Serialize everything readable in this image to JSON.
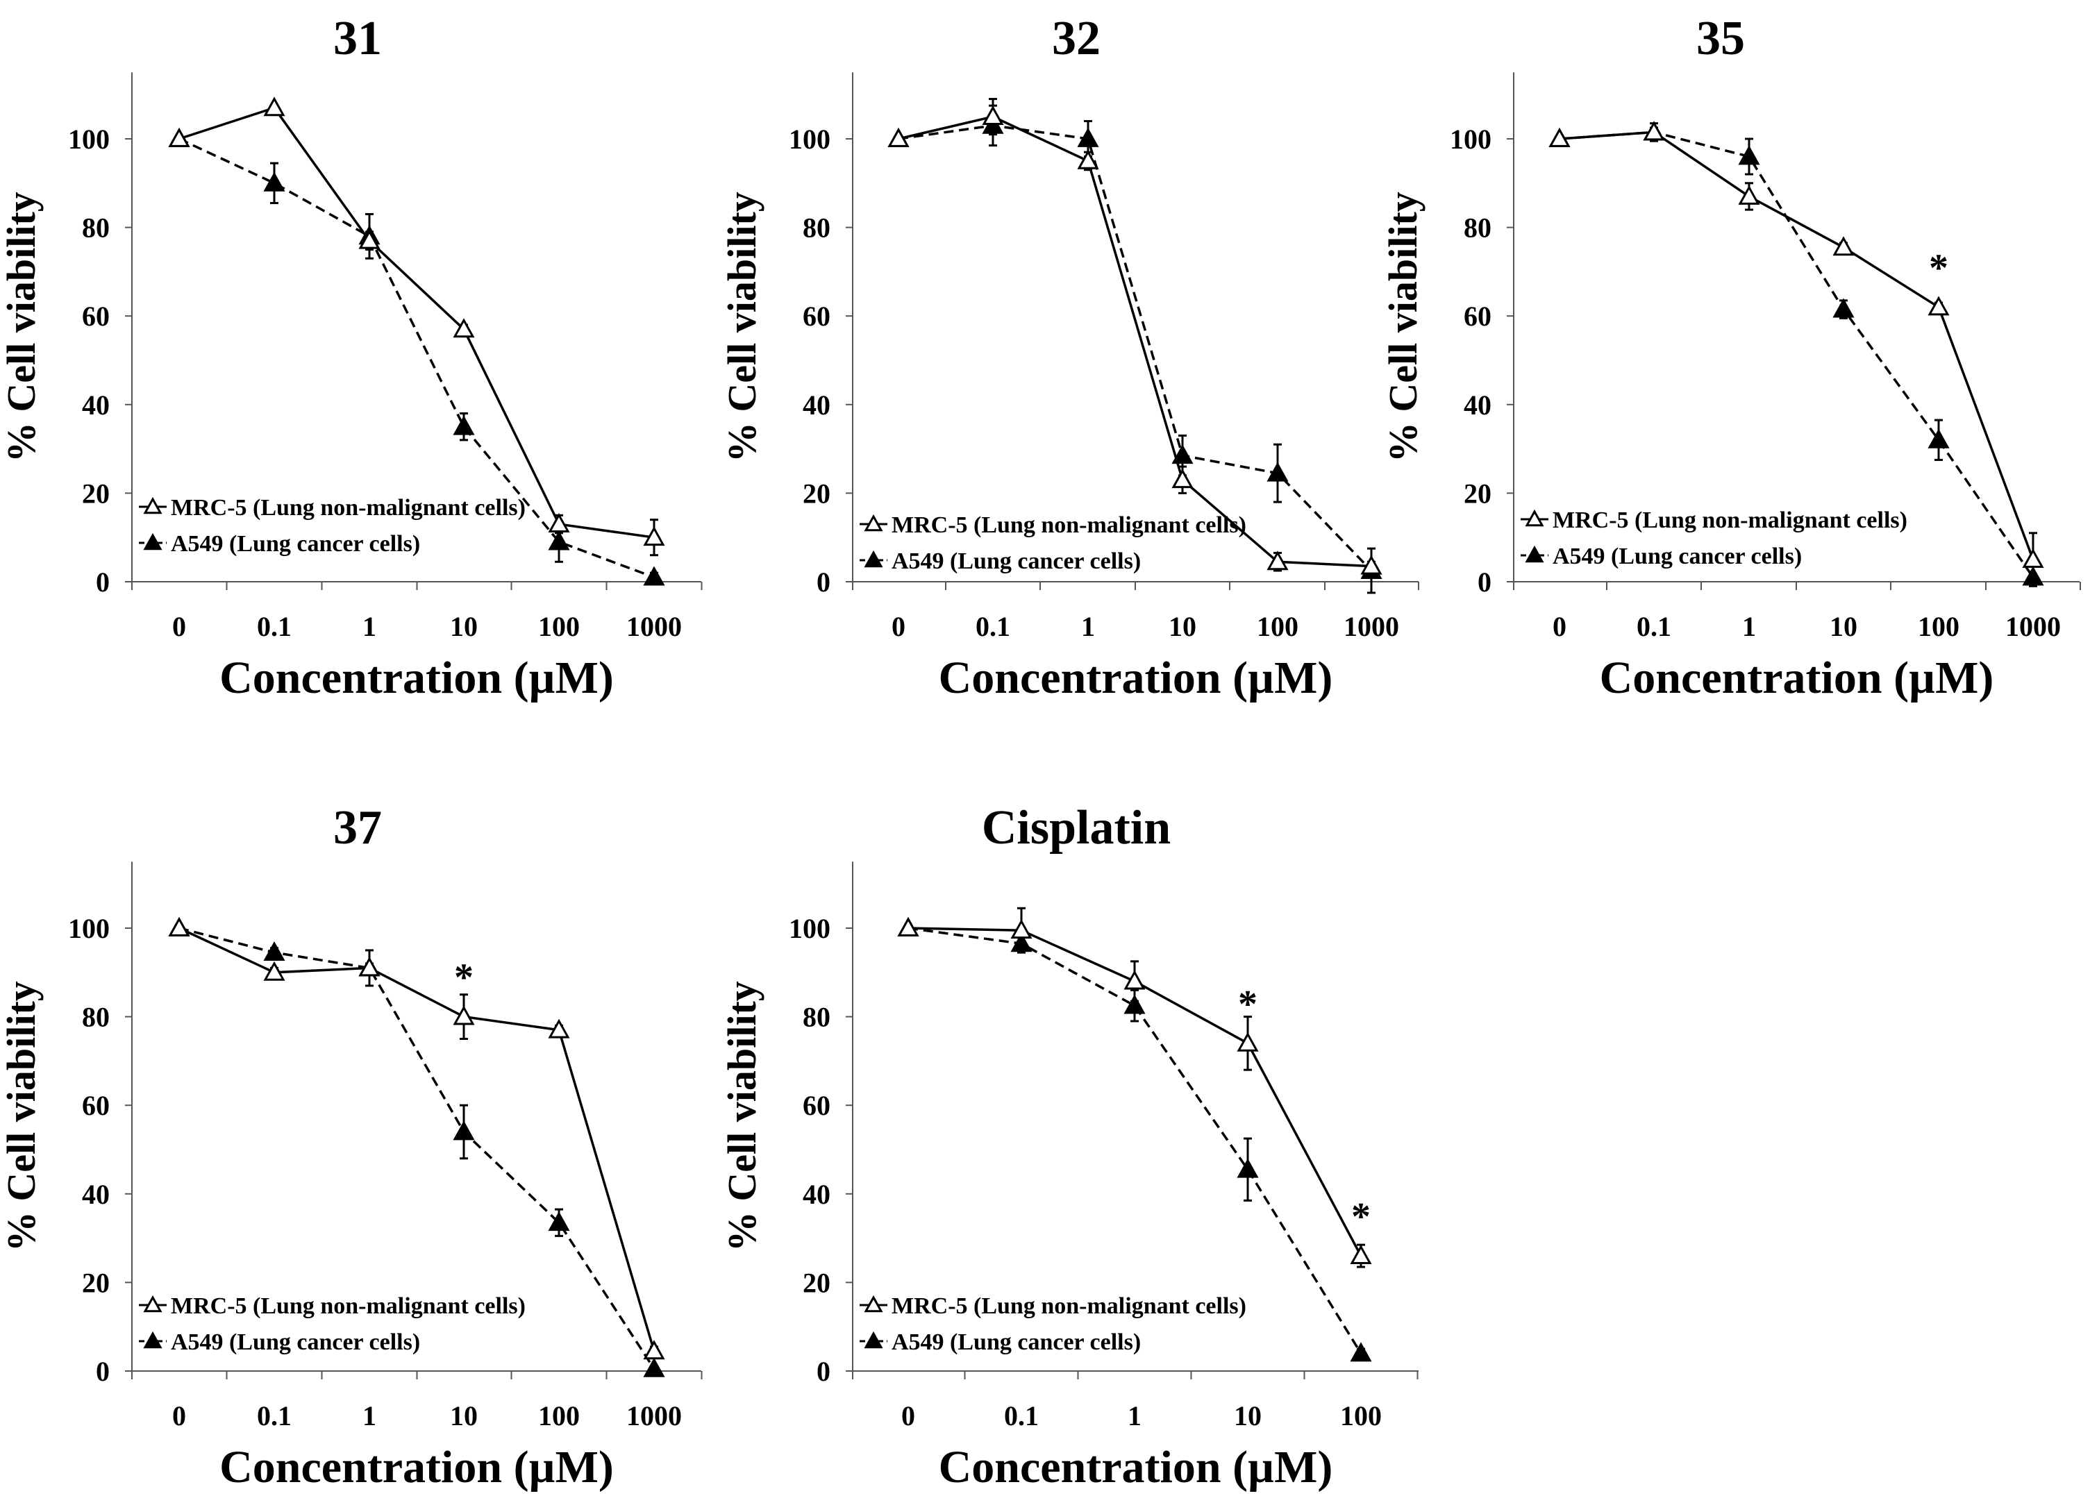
{
  "figure": {
    "description_free": true,
    "y_axis_label": "% Cell viability",
    "x_axis_label": "Concentration (µM)",
    "legend": [
      "MRC-5 (Lung non-malignant cells)",
      "A549 (Lung cancer cells)"
    ]
  },
  "chart_data": [
    {
      "type": "line",
      "title": "31",
      "xlabel": "Concentration (µM)",
      "ylabel": "% Cell viability",
      "categories": [
        "0",
        "0.1",
        "1",
        "10",
        "100",
        "1000"
      ],
      "ylim": [
        0,
        115
      ],
      "yticks": [
        0,
        20,
        40,
        60,
        80,
        100
      ],
      "legend": "lower-left",
      "series": [
        {
          "name": "MRC-5 (Lung non-malignant cells)",
          "marker": "open-triangle",
          "line": "solid",
          "values": [
            100,
            107,
            77,
            57,
            13,
            10
          ],
          "errors": [
            0,
            0,
            2,
            1,
            2,
            4
          ]
        },
        {
          "name": "A549 (Lung cancer cells)",
          "marker": "filled-triangle",
          "line": "dashed",
          "values": [
            100,
            90,
            78,
            35,
            9,
            1
          ],
          "errors": [
            0,
            4.5,
            5,
            3,
            4.5,
            1
          ]
        }
      ],
      "annotations": []
    },
    {
      "type": "line",
      "title": "32",
      "xlabel": "Concentration (µM)",
      "ylabel": "% Cell viability",
      "categories": [
        "0",
        "0.1",
        "1",
        "10",
        "100",
        "1000"
      ],
      "ylim": [
        0,
        115
      ],
      "yticks": [
        0,
        20,
        40,
        60,
        80,
        100
      ],
      "legend": "lower-left",
      "series": [
        {
          "name": "MRC-5 (Lung non-malignant cells)",
          "marker": "open-triangle",
          "line": "solid",
          "values": [
            100,
            105,
            95,
            23,
            4.5,
            3.5
          ],
          "errors": [
            0,
            4,
            2,
            3,
            2,
            1
          ]
        },
        {
          "name": "A549 (Lung cancer cells)",
          "marker": "filled-triangle",
          "line": "dashed",
          "values": [
            100,
            103,
            100,
            28.5,
            24.5,
            2.5
          ],
          "errors": [
            0,
            4.5,
            4,
            4.5,
            6.5,
            5
          ]
        }
      ],
      "annotations": []
    },
    {
      "type": "line",
      "title": "35",
      "xlabel": "Concentration (µM)",
      "ylabel": "% Cell viability",
      "categories": [
        "0",
        "0.1",
        "1",
        "10",
        "100",
        "1000"
      ],
      "ylim": [
        0,
        115
      ],
      "yticks": [
        0,
        20,
        40,
        60,
        80,
        100
      ],
      "legend": "lower-left",
      "series": [
        {
          "name": "MRC-5 (Lung non-malignant cells)",
          "marker": "open-triangle",
          "line": "solid",
          "values": [
            100,
            101.5,
            87,
            75.5,
            62,
            5
          ],
          "errors": [
            0,
            1,
            3,
            1,
            1,
            6
          ]
        },
        {
          "name": "A549 (Lung cancer cells)",
          "marker": "filled-triangle",
          "line": "dashed",
          "values": [
            100,
            101.5,
            96,
            61.5,
            32,
            1
          ],
          "errors": [
            0,
            2,
            4,
            2,
            4.5,
            0.5
          ]
        }
      ],
      "annotations": [
        {
          "category": "100",
          "y": 62,
          "text": "*"
        }
      ]
    },
    {
      "type": "line",
      "title": "37",
      "xlabel": "Concentration (µM)",
      "ylabel": "% Cell viability",
      "categories": [
        "0",
        "0.1",
        "1",
        "10",
        "100",
        "1000"
      ],
      "ylim": [
        0,
        115
      ],
      "yticks": [
        0,
        20,
        40,
        60,
        80,
        100
      ],
      "legend": "lower-left",
      "series": [
        {
          "name": "MRC-5 (Lung non-malignant cells)",
          "marker": "open-triangle",
          "line": "solid",
          "values": [
            100,
            90,
            91,
            80,
            77,
            4.5
          ],
          "errors": [
            0,
            1,
            1,
            5,
            1,
            1
          ]
        },
        {
          "name": "A549 (Lung cancer cells)",
          "marker": "filled-triangle",
          "line": "dashed",
          "values": [
            100,
            94.5,
            91,
            54,
            33.5,
            0.5
          ],
          "errors": [
            0,
            1,
            4,
            6,
            3,
            0.5
          ]
        }
      ],
      "annotations": [
        {
          "category": "10",
          "y": 80,
          "text": "*"
        }
      ]
    },
    {
      "type": "line",
      "title": "Cisplatin",
      "xlabel": "Concentration (µM)",
      "ylabel": "% Cell viability",
      "categories": [
        "0",
        "0.1",
        "1",
        "10",
        "100"
      ],
      "ylim": [
        0,
        115
      ],
      "yticks": [
        0,
        20,
        40,
        60,
        80,
        100
      ],
      "legend": "lower-left",
      "series": [
        {
          "name": "MRC-5 (Lung non-malignant cells)",
          "marker": "open-triangle",
          "line": "solid",
          "values": [
            100,
            99.5,
            88,
            74,
            26
          ],
          "errors": [
            0,
            5,
            4.5,
            6,
            2.5
          ]
        },
        {
          "name": "A549 (Lung cancer cells)",
          "marker": "filled-triangle",
          "line": "dashed",
          "values": [
            100,
            96.5,
            82.5,
            45.5,
            4
          ],
          "errors": [
            0,
            2,
            3.5,
            7,
            1
          ]
        }
      ],
      "annotations": [
        {
          "category": "10",
          "y": 74,
          "text": "*"
        },
        {
          "category": "100",
          "y": 26,
          "text": "*"
        }
      ]
    }
  ]
}
